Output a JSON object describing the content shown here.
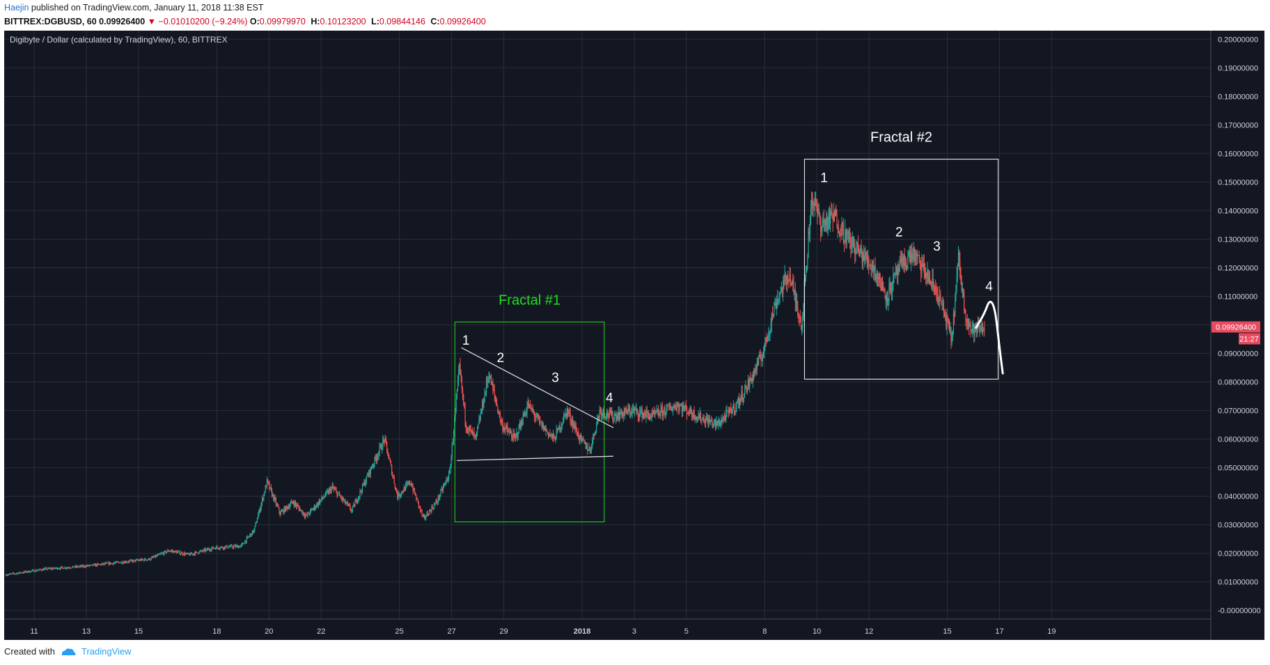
{
  "header": {
    "author": "Haejin",
    "published": "published on TradingView.com, January 11, 2018 11:38 EST",
    "symbol": "BITTREX:DGBUSD, 60",
    "last": "0.09926400",
    "down_arrow": "▼",
    "change": "−0.01010200 (−9.24%)",
    "o_label": "O:",
    "o_value": "0.09979970",
    "h_label": "H:",
    "h_value": "0.10123200",
    "l_label": "L:",
    "l_value": "0.09844146",
    "c_label": "C:",
    "c_value": "0.09926400"
  },
  "colors": {
    "background": "#131722",
    "grid": "#2a2e39",
    "up": "#26a69a",
    "down": "#ef5350",
    "fractal1": "#22dd22",
    "fractal2": "#ffffff",
    "price_tag": "#e84a5f"
  },
  "chart_data": {
    "type": "candlestick",
    "title": "Digibyte / Dollar (calculated by TradingView), 60, BITTREX",
    "x_ticks": [
      "11",
      "13",
      "15",
      "18",
      "20",
      "22",
      "25",
      "27",
      "29",
      "2018",
      "3",
      "5",
      "8",
      "10",
      "12",
      "15",
      "17",
      "19"
    ],
    "y_ticks": [
      "0.20000000",
      "0.19000000",
      "0.18000000",
      "0.17000000",
      "0.16000000",
      "0.15000000",
      "0.14000000",
      "0.13000000",
      "0.12000000",
      "0.11000000",
      "0.10000000",
      "0.09000000",
      "0.08000000",
      "0.07000000",
      "0.06000000",
      "0.05000000",
      "0.04000000",
      "0.03000000",
      "0.02000000",
      "0.01000000",
      "-0.00000000"
    ],
    "ylim": [
      -0.003,
      0.203
    ],
    "price_path": [
      [
        0,
        0.0125
      ],
      [
        6,
        0.0145
      ],
      [
        12,
        0.0155
      ],
      [
        18,
        0.017
      ],
      [
        22,
        0.018
      ],
      [
        25,
        0.021
      ],
      [
        28,
        0.0195
      ],
      [
        32,
        0.022
      ],
      [
        36,
        0.0225
      ],
      [
        38,
        0.028
      ],
      [
        40,
        0.045
      ],
      [
        42,
        0.034
      ],
      [
        44,
        0.038
      ],
      [
        46,
        0.033
      ],
      [
        50,
        0.043
      ],
      [
        53,
        0.035
      ],
      [
        56,
        0.05
      ],
      [
        58,
        0.06
      ],
      [
        60,
        0.04
      ],
      [
        62,
        0.045
      ],
      [
        64,
        0.032
      ],
      [
        66,
        0.038
      ],
      [
        68,
        0.048
      ],
      [
        69.5,
        0.085
      ],
      [
        70.5,
        0.065
      ],
      [
        72,
        0.06
      ],
      [
        74,
        0.083
      ],
      [
        76,
        0.065
      ],
      [
        78,
        0.06
      ],
      [
        80,
        0.072
      ],
      [
        82,
        0.065
      ],
      [
        84,
        0.06
      ],
      [
        86,
        0.07
      ],
      [
        88,
        0.06
      ],
      [
        89.5,
        0.056
      ],
      [
        91,
        0.07
      ],
      [
        93,
        0.068
      ],
      [
        96,
        0.07
      ],
      [
        99,
        0.068
      ],
      [
        103,
        0.072
      ],
      [
        106,
        0.068
      ],
      [
        109,
        0.065
      ],
      [
        112,
        0.072
      ],
      [
        114,
        0.08
      ],
      [
        116,
        0.09
      ],
      [
        118,
        0.108
      ],
      [
        120,
        0.118
      ],
      [
        122,
        0.1
      ],
      [
        123.5,
        0.145
      ],
      [
        125,
        0.135
      ],
      [
        127,
        0.138
      ],
      [
        129,
        0.13
      ],
      [
        131,
        0.125
      ],
      [
        133,
        0.12
      ],
      [
        135,
        0.11
      ],
      [
        137,
        0.12
      ],
      [
        139,
        0.125
      ],
      [
        141,
        0.118
      ],
      [
        143,
        0.11
      ],
      [
        145,
        0.095
      ],
      [
        146,
        0.123
      ],
      [
        147,
        0.105
      ],
      [
        148,
        0.098
      ],
      [
        150,
        0.099
      ]
    ],
    "current_price": "0.09926400",
    "countdown": "21:27",
    "annotations": [
      {
        "label": "Fractal #1",
        "box": {
          "x0": 68.8,
          "x1": 91.7,
          "y0": 0.031,
          "y1": 0.101
        }
      },
      {
        "label": "Fractal #2",
        "box": {
          "x0": 122.4,
          "x1": 152.1,
          "y0": 0.081,
          "y1": 0.158
        }
      },
      {
        "label": "1",
        "group": "fractal1",
        "x": 70.5,
        "y": 0.093
      },
      {
        "label": "2",
        "group": "fractal1",
        "x": 75.8,
        "y": 0.087
      },
      {
        "label": "3",
        "group": "fractal1",
        "x": 84.2,
        "y": 0.08
      },
      {
        "label": "4",
        "group": "fractal1",
        "x": 92.5,
        "y": 0.073
      },
      {
        "label": "1",
        "group": "fractal2",
        "x": 125.4,
        "y": 0.15
      },
      {
        "label": "2",
        "group": "fractal2",
        "x": 136.9,
        "y": 0.131
      },
      {
        "label": "3",
        "group": "fractal2",
        "x": 142.7,
        "y": 0.126
      },
      {
        "label": "4",
        "group": "fractal2",
        "x": 150.7,
        "y": 0.112
      }
    ],
    "trendlines": [
      {
        "from": [
          69.8,
          0.092
        ],
        "to": [
          93.1,
          0.064
        ]
      },
      {
        "from": [
          69.1,
          0.0525
        ],
        "to": [
          93.1,
          0.054
        ]
      }
    ],
    "projection": [
      [
        148.7,
        0.099
      ],
      [
        150.0,
        0.104
      ],
      [
        150.8,
        0.109
      ],
      [
        151.6,
        0.106
      ],
      [
        152.2,
        0.094
      ],
      [
        152.8,
        0.083
      ]
    ]
  },
  "footer": {
    "created_with": "Created with",
    "brand": "TradingView"
  }
}
